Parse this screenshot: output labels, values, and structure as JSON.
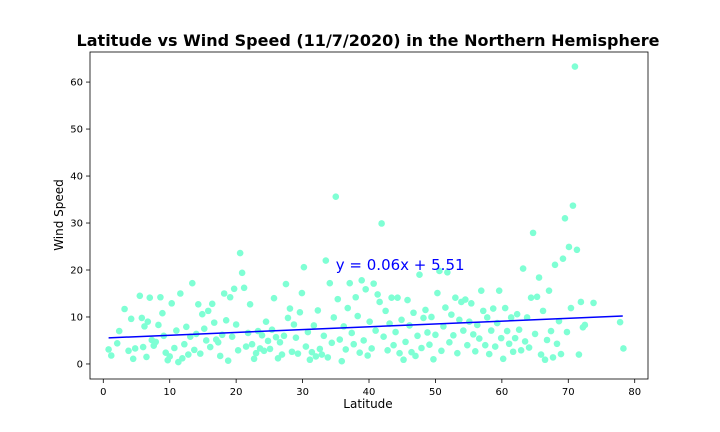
{
  "chart_data": {
    "type": "scatter",
    "title": "Latitude vs Wind Speed (11/7/2020) in the Northern Hemisphere",
    "xlabel": "Latitude",
    "ylabel": "Wind Speed",
    "xlim": [
      -2,
      82
    ],
    "ylim": [
      -3.2,
      66.4
    ],
    "xticks": [
      0,
      10,
      20,
      30,
      40,
      50,
      60,
      70,
      80
    ],
    "yticks": [
      0,
      10,
      20,
      30,
      40,
      50,
      60
    ],
    "grid": false,
    "point_color": "#7fffd4",
    "line_color": "#0000ff",
    "annotation": {
      "text": "y = 0.06x + 5.51",
      "x": 35,
      "y": 20,
      "color": "#0000ff"
    },
    "regression": {
      "slope": 0.06,
      "intercept": 5.51,
      "x_range": [
        0.8,
        78.2
      ]
    },
    "points": [
      [
        0.8,
        3.1
      ],
      [
        1.2,
        1.8
      ],
      [
        2.1,
        4.4
      ],
      [
        2.4,
        7.0
      ],
      [
        3.2,
        11.7
      ],
      [
        3.8,
        2.8
      ],
      [
        4.2,
        9.6
      ],
      [
        4.5,
        1.1
      ],
      [
        4.8,
        3.3
      ],
      [
        5.5,
        14.5
      ],
      [
        5.8,
        9.8
      ],
      [
        6.0,
        3.6
      ],
      [
        6.2,
        8.0
      ],
      [
        6.5,
        1.5
      ],
      [
        6.7,
        9.0
      ],
      [
        7.0,
        14.1
      ],
      [
        7.3,
        5.1
      ],
      [
        7.6,
        3.9
      ],
      [
        7.9,
        4.7
      ],
      [
        8.3,
        8.3
      ],
      [
        8.6,
        14.2
      ],
      [
        8.9,
        10.8
      ],
      [
        9.1,
        6.0
      ],
      [
        9.4,
        2.4
      ],
      [
        9.7,
        0.8
      ],
      [
        10.0,
        1.6
      ],
      [
        10.3,
        12.9
      ],
      [
        10.7,
        3.4
      ],
      [
        11.0,
        7.1
      ],
      [
        11.3,
        0.4
      ],
      [
        11.6,
        15.0
      ],
      [
        11.9,
        1.2
      ],
      [
        12.2,
        4.2
      ],
      [
        12.5,
        7.9
      ],
      [
        12.8,
        2.0
      ],
      [
        13.1,
        5.8
      ],
      [
        13.4,
        17.2
      ],
      [
        13.7,
        3.0
      ],
      [
        14.0,
        6.4
      ],
      [
        14.3,
        12.7
      ],
      [
        14.6,
        2.2
      ],
      [
        14.9,
        10.6
      ],
      [
        15.2,
        7.5
      ],
      [
        15.5,
        5.0
      ],
      [
        15.8,
        11.3
      ],
      [
        16.1,
        3.6
      ],
      [
        16.4,
        12.8
      ],
      [
        16.7,
        8.8
      ],
      [
        17.0,
        5.2
      ],
      [
        17.3,
        4.6
      ],
      [
        17.6,
        1.7
      ],
      [
        17.9,
        6.2
      ],
      [
        18.2,
        15.0
      ],
      [
        18.5,
        9.3
      ],
      [
        18.8,
        0.7
      ],
      [
        19.1,
        14.2
      ],
      [
        19.4,
        5.8
      ],
      [
        19.7,
        16.0
      ],
      [
        20.0,
        8.4
      ],
      [
        20.3,
        2.9
      ],
      [
        20.6,
        23.6
      ],
      [
        20.9,
        19.4
      ],
      [
        21.2,
        16.2
      ],
      [
        21.5,
        3.7
      ],
      [
        21.8,
        6.6
      ],
      [
        22.1,
        12.7
      ],
      [
        22.4,
        4.2
      ],
      [
        22.7,
        1.1
      ],
      [
        23.0,
        2.3
      ],
      [
        23.3,
        7.0
      ],
      [
        23.6,
        3.3
      ],
      [
        23.9,
        6.1
      ],
      [
        24.2,
        2.8
      ],
      [
        24.5,
        9.0
      ],
      [
        24.8,
        4.9
      ],
      [
        25.1,
        3.2
      ],
      [
        25.4,
        7.3
      ],
      [
        25.7,
        14.0
      ],
      [
        26.0,
        5.7
      ],
      [
        26.3,
        1.2
      ],
      [
        26.6,
        4.6
      ],
      [
        26.9,
        2.0
      ],
      [
        27.2,
        6.0
      ],
      [
        27.5,
        17.0
      ],
      [
        27.8,
        9.8
      ],
      [
        28.1,
        11.8
      ],
      [
        28.4,
        2.6
      ],
      [
        28.7,
        8.4
      ],
      [
        29.0,
        5.6
      ],
      [
        29.3,
        2.2
      ],
      [
        29.6,
        11.0
      ],
      [
        29.9,
        15.1
      ],
      [
        30.2,
        20.6
      ],
      [
        30.5,
        3.7
      ],
      [
        30.8,
        6.8
      ],
      [
        31.1,
        0.9
      ],
      [
        31.4,
        2.5
      ],
      [
        31.7,
        8.2
      ],
      [
        32.0,
        1.6
      ],
      [
        32.3,
        11.4
      ],
      [
        32.6,
        3.2
      ],
      [
        32.9,
        2.0
      ],
      [
        33.2,
        6.0
      ],
      [
        33.5,
        22.0
      ],
      [
        33.8,
        1.4
      ],
      [
        34.1,
        17.2
      ],
      [
        34.4,
        4.5
      ],
      [
        34.7,
        9.9
      ],
      [
        35.0,
        35.6
      ],
      [
        35.3,
        13.8
      ],
      [
        35.6,
        5.2
      ],
      [
        35.9,
        0.6
      ],
      [
        36.2,
        8.0
      ],
      [
        36.5,
        3.1
      ],
      [
        36.8,
        11.9
      ],
      [
        37.1,
        17.2
      ],
      [
        37.4,
        6.6
      ],
      [
        37.7,
        4.2
      ],
      [
        38.0,
        14.2
      ],
      [
        38.3,
        10.2
      ],
      [
        38.6,
        2.4
      ],
      [
        38.9,
        17.8
      ],
      [
        39.2,
        5.0
      ],
      [
        39.5,
        15.9
      ],
      [
        39.8,
        1.8
      ],
      [
        40.1,
        9.0
      ],
      [
        40.4,
        3.3
      ],
      [
        40.7,
        17.1
      ],
      [
        41.0,
        7.1
      ],
      [
        41.3,
        14.8
      ],
      [
        41.6,
        13.2
      ],
      [
        41.9,
        29.9
      ],
      [
        42.2,
        5.8
      ],
      [
        42.5,
        11.3
      ],
      [
        42.8,
        2.9
      ],
      [
        43.1,
        8.6
      ],
      [
        43.4,
        14.1
      ],
      [
        43.7,
        4.0
      ],
      [
        44.0,
        6.8
      ],
      [
        44.3,
        14.1
      ],
      [
        44.6,
        2.3
      ],
      [
        44.9,
        9.4
      ],
      [
        45.2,
        0.9
      ],
      [
        45.5,
        4.7
      ],
      [
        45.8,
        13.6
      ],
      [
        46.1,
        8.2
      ],
      [
        46.4,
        2.5
      ],
      [
        46.7,
        10.9
      ],
      [
        47.0,
        1.7
      ],
      [
        47.3,
        6.0
      ],
      [
        47.6,
        19.0
      ],
      [
        47.9,
        3.4
      ],
      [
        48.2,
        9.8
      ],
      [
        48.5,
        11.5
      ],
      [
        48.8,
        6.7
      ],
      [
        49.1,
        4.1
      ],
      [
        49.4,
        10.0
      ],
      [
        49.7,
        1.0
      ],
      [
        50.0,
        6.2
      ],
      [
        50.3,
        15.1
      ],
      [
        50.6,
        19.8
      ],
      [
        50.9,
        2.8
      ],
      [
        51.2,
        8.0
      ],
      [
        51.5,
        12.0
      ],
      [
        51.8,
        19.5
      ],
      [
        52.1,
        4.6
      ],
      [
        52.4,
        10.5
      ],
      [
        52.7,
        6.1
      ],
      [
        53.0,
        14.1
      ],
      [
        53.3,
        2.3
      ],
      [
        53.6,
        9.4
      ],
      [
        53.9,
        13.2
      ],
      [
        54.2,
        7.1
      ],
      [
        54.5,
        13.7
      ],
      [
        54.8,
        4.0
      ],
      [
        55.1,
        9.0
      ],
      [
        55.4,
        12.9
      ],
      [
        55.7,
        6.3
      ],
      [
        56.0,
        2.7
      ],
      [
        56.3,
        8.3
      ],
      [
        56.6,
        5.4
      ],
      [
        56.9,
        15.6
      ],
      [
        57.2,
        11.3
      ],
      [
        57.5,
        4.0
      ],
      [
        57.8,
        9.9
      ],
      [
        58.1,
        2.1
      ],
      [
        58.4,
        7.1
      ],
      [
        58.7,
        11.8
      ],
      [
        59.0,
        3.7
      ],
      [
        59.3,
        8.7
      ],
      [
        59.6,
        15.6
      ],
      [
        59.9,
        5.5
      ],
      [
        60.2,
        1.1
      ],
      [
        60.5,
        11.9
      ],
      [
        60.8,
        7.0
      ],
      [
        61.1,
        4.3
      ],
      [
        61.4,
        9.9
      ],
      [
        61.7,
        2.6
      ],
      [
        62.0,
        5.5
      ],
      [
        62.3,
        10.6
      ],
      [
        62.6,
        7.3
      ],
      [
        62.9,
        2.9
      ],
      [
        63.2,
        20.3
      ],
      [
        63.5,
        4.8
      ],
      [
        63.8,
        9.9
      ],
      [
        64.1,
        3.5
      ],
      [
        64.4,
        14.1
      ],
      [
        64.7,
        27.9
      ],
      [
        65.0,
        6.4
      ],
      [
        65.3,
        14.3
      ],
      [
        65.6,
        18.4
      ],
      [
        65.9,
        2.0
      ],
      [
        66.2,
        11.3
      ],
      [
        66.5,
        0.9
      ],
      [
        66.8,
        5.1
      ],
      [
        67.1,
        15.6
      ],
      [
        67.4,
        7.0
      ],
      [
        67.7,
        1.4
      ],
      [
        68.0,
        21.1
      ],
      [
        68.3,
        4.3
      ],
      [
        68.6,
        9.1
      ],
      [
        68.9,
        2.1
      ],
      [
        69.2,
        22.4
      ],
      [
        69.5,
        31.0
      ],
      [
        69.8,
        6.8
      ],
      [
        70.1,
        24.9
      ],
      [
        70.4,
        11.9
      ],
      [
        70.7,
        33.7
      ],
      [
        71.0,
        63.3
      ],
      [
        71.3,
        24.3
      ],
      [
        71.6,
        2.0
      ],
      [
        71.9,
        13.2
      ],
      [
        72.2,
        7.8
      ],
      [
        72.5,
        8.3
      ],
      [
        73.8,
        13.0
      ],
      [
        77.8,
        8.9
      ],
      [
        78.3,
        3.3
      ]
    ]
  }
}
